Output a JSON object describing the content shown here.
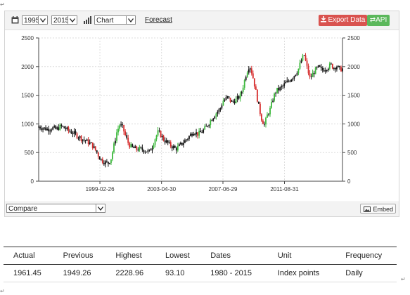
{
  "toolbar": {
    "calendar_icon": "calendar-icon",
    "start_year": "1995",
    "end_year": "2015",
    "chart_type": "Chart",
    "forecast_label": "Forecast",
    "export_label": "Export Data",
    "api_label": "API",
    "colors": {
      "export": "#d9534f",
      "api": "#5cb85c"
    }
  },
  "chart_data": {
    "type": "candlestick",
    "x_ticks": [
      "1999-02-26",
      "2003-04-30",
      "2007-06-29",
      "2011-08-31"
    ],
    "y_ticks": [
      0,
      500,
      1000,
      1500,
      2000,
      2500
    ],
    "ylim": [
      0,
      2500
    ],
    "xlim": [
      1995.0,
      2015.6
    ],
    "grid": true,
    "series": [
      {
        "points": [
          [
            1995.0,
            950
          ],
          [
            1995.3,
            930
          ],
          [
            1995.6,
            905
          ],
          [
            1995.9,
            930
          ],
          [
            1996.2,
            905
          ],
          [
            1996.5,
            960
          ],
          [
            1996.8,
            920
          ],
          [
            1997.1,
            870
          ],
          [
            1997.4,
            830
          ],
          [
            1997.7,
            780
          ],
          [
            1998.0,
            730
          ],
          [
            1998.3,
            690
          ],
          [
            1998.6,
            640
          ],
          [
            1998.8,
            560
          ],
          [
            1999.0,
            480
          ],
          [
            1999.1,
            420
          ],
          [
            1999.3,
            360
          ],
          [
            1999.5,
            330
          ],
          [
            1999.7,
            310
          ],
          [
            1999.9,
            390
          ],
          [
            2000.1,
            620
          ],
          [
            2000.3,
            860
          ],
          [
            2000.5,
            990
          ],
          [
            2000.7,
            930
          ],
          [
            2000.9,
            780
          ],
          [
            2001.1,
            650
          ],
          [
            2001.3,
            590
          ],
          [
            2001.6,
            560
          ],
          [
            2001.9,
            560
          ],
          [
            2002.2,
            540
          ],
          [
            2002.5,
            510
          ],
          [
            2002.7,
            610
          ],
          [
            2002.9,
            750
          ],
          [
            2003.1,
            860
          ],
          [
            2003.3,
            800
          ],
          [
            2003.5,
            720
          ],
          [
            2003.7,
            680
          ],
          [
            2003.9,
            630
          ],
          [
            2004.1,
            600
          ],
          [
            2004.3,
            560
          ],
          [
            2004.6,
            630
          ],
          [
            2004.9,
            700
          ],
          [
            2005.2,
            780
          ],
          [
            2005.5,
            870
          ],
          [
            2005.8,
            820
          ],
          [
            2006.1,
            870
          ],
          [
            2006.4,
            960
          ],
          [
            2006.7,
            1080
          ],
          [
            2007.0,
            1180
          ],
          [
            2007.3,
            1260
          ],
          [
            2007.5,
            1400
          ],
          [
            2007.8,
            1460
          ],
          [
            2008.1,
            1380
          ],
          [
            2008.4,
            1420
          ],
          [
            2008.7,
            1500
          ],
          [
            2008.9,
            1700
          ],
          [
            2009.1,
            1900
          ],
          [
            2009.3,
            2030
          ],
          [
            2009.5,
            1850
          ],
          [
            2009.7,
            1600
          ],
          [
            2009.9,
            1330
          ],
          [
            2010.1,
            1100
          ],
          [
            2010.3,
            980
          ],
          [
            2010.5,
            1150
          ],
          [
            2010.7,
            1260
          ],
          [
            2010.9,
            1450
          ],
          [
            2011.1,
            1580
          ],
          [
            2011.4,
            1620
          ],
          [
            2011.7,
            1700
          ],
          [
            2012.0,
            1760
          ],
          [
            2012.3,
            1840
          ],
          [
            2012.6,
            1950
          ],
          [
            2012.8,
            2100
          ],
          [
            2013.0,
            2200
          ],
          [
            2013.2,
            1980
          ],
          [
            2013.4,
            1790
          ],
          [
            2013.6,
            1880
          ],
          [
            2013.8,
            1950
          ],
          [
            2014.0,
            1990
          ],
          [
            2014.2,
            1930
          ],
          [
            2014.4,
            1960
          ],
          [
            2014.6,
            1990
          ],
          [
            2014.8,
            2030
          ],
          [
            2015.0,
            1980
          ],
          [
            2015.2,
            2010
          ],
          [
            2015.4,
            1950
          ],
          [
            2015.6,
            1961
          ]
        ]
      }
    ]
  },
  "bottom": {
    "compare_label": "Compare",
    "embed_label": "Embed"
  },
  "stats": {
    "headers": [
      "Actual",
      "Previous",
      "Highest",
      "Lowest",
      "Dates",
      "Unit",
      "Frequency"
    ],
    "values": [
      "1961.45",
      "1949.26",
      "2228.96",
      "93.10",
      "1980 - 2015",
      "Index points",
      "Daily"
    ]
  }
}
